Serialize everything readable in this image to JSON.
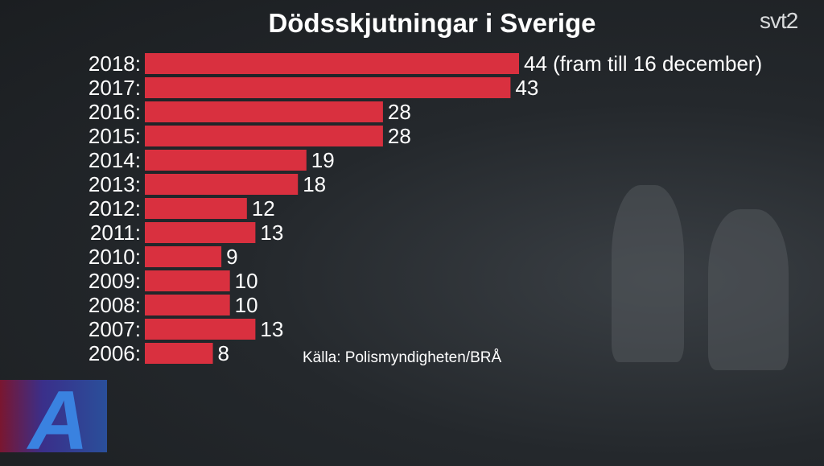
{
  "title": "Dödsskjutningar i Sverige",
  "channel_logo": "svt2",
  "program_logo": "A",
  "chart_data": {
    "type": "bar",
    "orientation": "horizontal",
    "title": "Dödsskjutningar i Sverige",
    "categories": [
      "2018:",
      "2017:",
      "2016:",
      "2015:",
      "2014:",
      "2013:",
      "2012:",
      "2011:",
      "2010:",
      "2009:",
      "2008:",
      "2007:",
      "2006:"
    ],
    "values": [
      44,
      43,
      28,
      28,
      19,
      18,
      12,
      13,
      9,
      10,
      10,
      13,
      8
    ],
    "value_labels": [
      "44 (fram till 16 december)",
      "43",
      "28",
      "28",
      "19",
      "18",
      "12",
      "13",
      "9",
      "10",
      "10",
      "13",
      "8"
    ],
    "bar_color": "#d9303f",
    "source": "Källa: Polismyndigheten/BRÅ",
    "grid": false
  }
}
